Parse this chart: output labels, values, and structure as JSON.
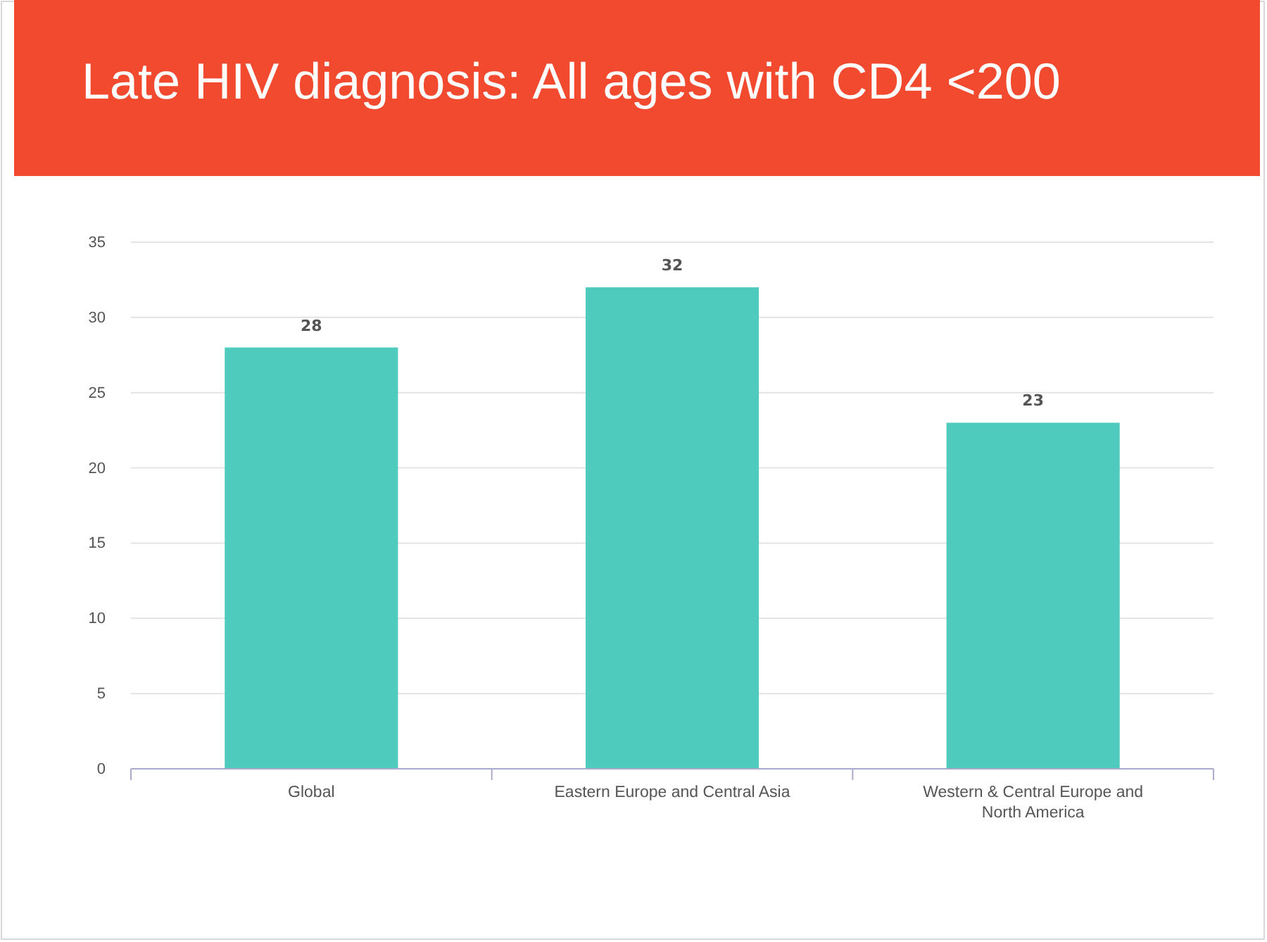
{
  "chart_data": {
    "type": "bar",
    "title": "Late HIV diagnosis: All ages with CD4 <200",
    "categories": [
      "Global",
      "Eastern Europe and Central Asia",
      "Western & Central Europe and North America"
    ],
    "values": [
      28,
      32,
      23
    ],
    "color": "#4ecbbd",
    "ylim": [
      0,
      35
    ],
    "yticks": [
      0,
      5,
      10,
      15,
      20,
      25,
      30,
      35
    ],
    "grid": "y",
    "data_labels": true
  }
}
